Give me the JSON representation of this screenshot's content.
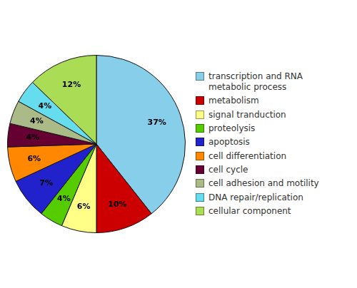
{
  "chart_data": {
    "type": "pie",
    "categories": [
      "transcription and RNA\nmetabolic process",
      "metabolism",
      "signal tranduction",
      "proteolysis",
      "apoptosis",
      "cell differentiation",
      "cell cycle",
      "cell adhesion and motility",
      "DNA repair/replication",
      "cellular component"
    ],
    "values": [
      37,
      10,
      6,
      4,
      7,
      6,
      4,
      4,
      4,
      12
    ],
    "value_labels": [
      "37%",
      "10%",
      "6%",
      "4%",
      "7%",
      "6%",
      "4%",
      "4%",
      "4%",
      "12%"
    ],
    "colors": [
      "#87CEEB",
      "#CC0000",
      "#FFFF88",
      "#55CC00",
      "#2222CC",
      "#FF8800",
      "#660033",
      "#AABB88",
      "#66DDEE",
      "#AADD55"
    ],
    "data_labels": true,
    "legend": "right"
  }
}
